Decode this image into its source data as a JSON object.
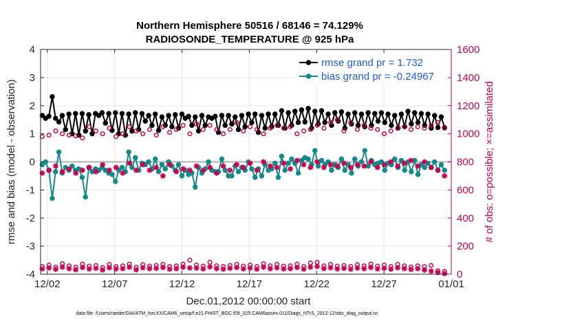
{
  "colors": {
    "rmse": "#000000",
    "bias": "#138a8a",
    "obs": "#c8004f",
    "legend_text": "#1f5bd6",
    "zero_line": "#b0b0b0",
    "grid": "#e6e6e6"
  },
  "chart_data": {
    "type": "line",
    "title_line1": "Northern Hemisphere 50516 / 68146 = 74.129%",
    "title_line2": "RADIOSONDE_TEMPERATURE @ 925 hPa",
    "xlabel": "Dec.01,2012 00:00:00 start",
    "ylabel_left": "rmse and bias (model - observation)",
    "ylabel_right": "# of obs: o=possible; ×=assimilated",
    "footnote": "data file: /Users/raeder/DAI/ATM_forcXX/CAM6_setup/f.e21.FHIST_BGC.f09_025.CAM6assim.011/Diags_NTrS_2012-12/obs_diag_output.nc",
    "x_ticks": [
      "12/02",
      "12/07",
      "12/12",
      "12/17",
      "12/22",
      "12/27",
      "01/01"
    ],
    "x_tick_days": [
      2,
      7,
      12,
      17,
      22,
      27,
      32
    ],
    "xlim_days": [
      1.5,
      32
    ],
    "y_left_ticks": [
      "-4",
      "-3",
      "-2",
      "-1",
      "0",
      "1",
      "2",
      "3",
      "4"
    ],
    "y_left_lim": [
      -4,
      4
    ],
    "y_right_ticks": [
      "0",
      "200",
      "400",
      "600",
      "800",
      "1000",
      "1200",
      "1400",
      "1600"
    ],
    "y_right_lim": [
      0,
      1600
    ],
    "grid": true,
    "legend_placement": "top-right",
    "legend": [
      {
        "name": "rmse grand pr = 1.732",
        "series": "rmse"
      },
      {
        "name": "bias grand pr = -0.24967",
        "series": "bias"
      }
    ],
    "series": [
      {
        "id": "rmse",
        "axis": "left",
        "marker": "filled-circle",
        "values": [
          1.65,
          1.55,
          1.62,
          2.32,
          1.55,
          1.42,
          1.65,
          1.15,
          1.7,
          1.0,
          1.72,
          0.95,
          1.72,
          1.1,
          1.68,
          1.0,
          1.72,
          1.65,
          1.75,
          1.38,
          1.72,
          1.12,
          1.75,
          1.0,
          1.72,
          0.95,
          1.7,
          1.1,
          1.75,
          1.15,
          1.72,
          1.45,
          1.65,
          1.3,
          1.7,
          1.12,
          1.6,
          1.3,
          1.65,
          1.25,
          1.68,
          1.2,
          1.7,
          1.55,
          1.62,
          1.3,
          1.6,
          1.1,
          1.65,
          1.3,
          1.6,
          1.55,
          1.62,
          1.05,
          1.65,
          1.3,
          1.65,
          1.35,
          1.6,
          1.15,
          1.65,
          1.25,
          1.7,
          1.4,
          1.7,
          1.05,
          1.65,
          1.2,
          1.7,
          1.25,
          1.7,
          1.3,
          1.82,
          1.2,
          1.75,
          1.3,
          1.8,
          1.4,
          1.85,
          1.42,
          1.9,
          1.2,
          1.8,
          1.35,
          1.82,
          1.4,
          1.7,
          1.3,
          1.75,
          1.45,
          1.78,
          1.2,
          1.7,
          1.35,
          1.75,
          1.3,
          1.7,
          1.25,
          1.75,
          1.3,
          1.72,
          1.45,
          1.75,
          1.4,
          1.7,
          1.3,
          1.65,
          1.2,
          1.7,
          1.25,
          1.8,
          1.35,
          1.75,
          1.4,
          1.72,
          1.3,
          1.7,
          1.2,
          1.65,
          1.22,
          1.6,
          1.22
        ]
      },
      {
        "id": "bias",
        "axis": "left",
        "marker": "filled-circle",
        "values": [
          -0.1,
          0.0,
          -0.3,
          -1.3,
          -0.35,
          0.35,
          -0.4,
          -0.2,
          -0.3,
          -0.15,
          -0.3,
          -0.25,
          -0.55,
          -1.25,
          -0.2,
          -0.35,
          -0.25,
          -0.3,
          -0.2,
          -0.3,
          -0.4,
          -0.45,
          -0.7,
          -0.3,
          -0.2,
          -0.35,
          0.35,
          -0.2,
          0.15,
          -0.3,
          -0.05,
          -0.1,
          0.0,
          -0.25,
          0.1,
          -0.35,
          -0.1,
          -0.25,
          0.0,
          -0.15,
          -0.3,
          -0.1,
          -0.5,
          -0.3,
          -0.45,
          -0.4,
          -0.9,
          -0.2,
          -0.4,
          -0.25,
          0.0,
          -0.3,
          -0.35,
          -0.35,
          0.1,
          -0.3,
          -0.5,
          -0.5,
          -0.15,
          -0.35,
          -0.2,
          -0.3,
          0.0,
          -0.25,
          -0.55,
          -0.25,
          -0.5,
          -0.1,
          -0.3,
          -0.25,
          -0.05,
          -0.55,
          0.2,
          -0.3,
          -0.05,
          0.1,
          -0.05,
          -0.4,
          0.05,
          0.15,
          0.1,
          -0.1,
          0.4,
          -0.15,
          0.05,
          -0.1,
          0.0,
          -0.3,
          -0.1,
          -0.2,
          0.1,
          -0.3,
          -0.1,
          -0.4,
          0.1,
          -0.15,
          0.0,
          0.4,
          -0.15,
          0.05,
          -0.1,
          -0.05,
          0.0,
          -0.3,
          -0.05,
          -0.1,
          0.1,
          -0.2,
          0.05,
          -0.3,
          0.0,
          -0.35,
          0.05,
          -0.45,
          -0.1,
          -0.2,
          -0.05,
          -0.2,
          0.0,
          -0.3,
          -0.1,
          -0.3
        ]
      },
      {
        "id": "obs_possible_mid",
        "axis": "right",
        "marker": "open-circle",
        "values": [
          980,
          990,
          1020,
          1000,
          990,
          985,
          970,
          1050,
          1020,
          1000,
          1040,
          980,
          1000,
          1050,
          1020,
          1000,
          1030,
          990,
          1050,
          1010,
          1030,
          1060,
          1000,
          1070,
          1030,
          1060,
          1030,
          1000,
          1030,
          1080,
          1020,
          1050,
          1030,
          1000,
          1040,
          1060,
          1040,
          1050,
          1000,
          1020,
          1030,
          1060,
          1040,
          1080,
          1100,
          1020,
          1080,
          1030,
          1060,
          1040,
          1030,
          1000,
          1020,
          1040,
          1050,
          1030,
          1050,
          1040,
          1060,
          1080,
          1040
        ]
      },
      {
        "id": "obs_assimilated_mid",
        "axis": "right",
        "marker": "asterisk",
        "values": [
          720,
          740,
          770,
          730,
          750,
          720,
          740,
          760,
          730,
          780,
          740,
          760,
          720,
          790,
          740,
          780,
          740,
          760,
          700,
          780,
          730,
          750,
          740,
          770,
          740,
          760,
          720,
          770,
          740,
          780,
          760,
          790,
          740,
          800,
          770,
          760,
          790,
          750,
          810,
          780,
          760,
          800,
          760,
          780,
          770,
          790,
          760,
          780,
          770,
          800,
          760,
          780,
          800,
          770,
          790,
          810,
          770,
          800,
          760,
          740,
          700
        ]
      },
      {
        "id": "obs_possible_low",
        "axis": "right",
        "marker": "open-circle",
        "values": [
          55,
          65,
          50,
          75,
          60,
          50,
          72,
          58,
          62,
          48,
          70,
          55,
          60,
          72,
          50,
          68,
          58,
          62,
          70,
          55,
          60,
          72,
          100,
          65,
          58,
          85,
          60,
          55,
          62,
          70,
          58,
          65,
          55,
          75,
          60,
          70,
          58,
          60,
          72,
          55,
          80,
          85,
          60,
          70,
          58,
          62,
          55,
          68,
          60,
          72,
          58,
          65,
          55,
          70,
          60,
          52,
          60,
          55,
          62,
          25,
          20
        ]
      },
      {
        "id": "obs_assimilated_low",
        "axis": "right",
        "marker": "asterisk",
        "values": [
          38,
          45,
          35,
          50,
          40,
          32,
          48,
          38,
          42,
          30,
          46,
          38,
          40,
          50,
          32,
          46,
          40,
          42,
          48,
          36,
          40,
          50,
          45,
          44,
          38,
          52,
          40,
          36,
          42,
          48,
          38,
          44,
          36,
          50,
          40,
          46,
          38,
          40,
          48,
          36,
          50,
          55,
          40,
          46,
          38,
          42,
          36,
          44,
          40,
          48,
          38,
          42,
          36,
          46,
          40,
          34,
          40,
          30,
          22,
          12,
          5
        ]
      }
    ]
  }
}
